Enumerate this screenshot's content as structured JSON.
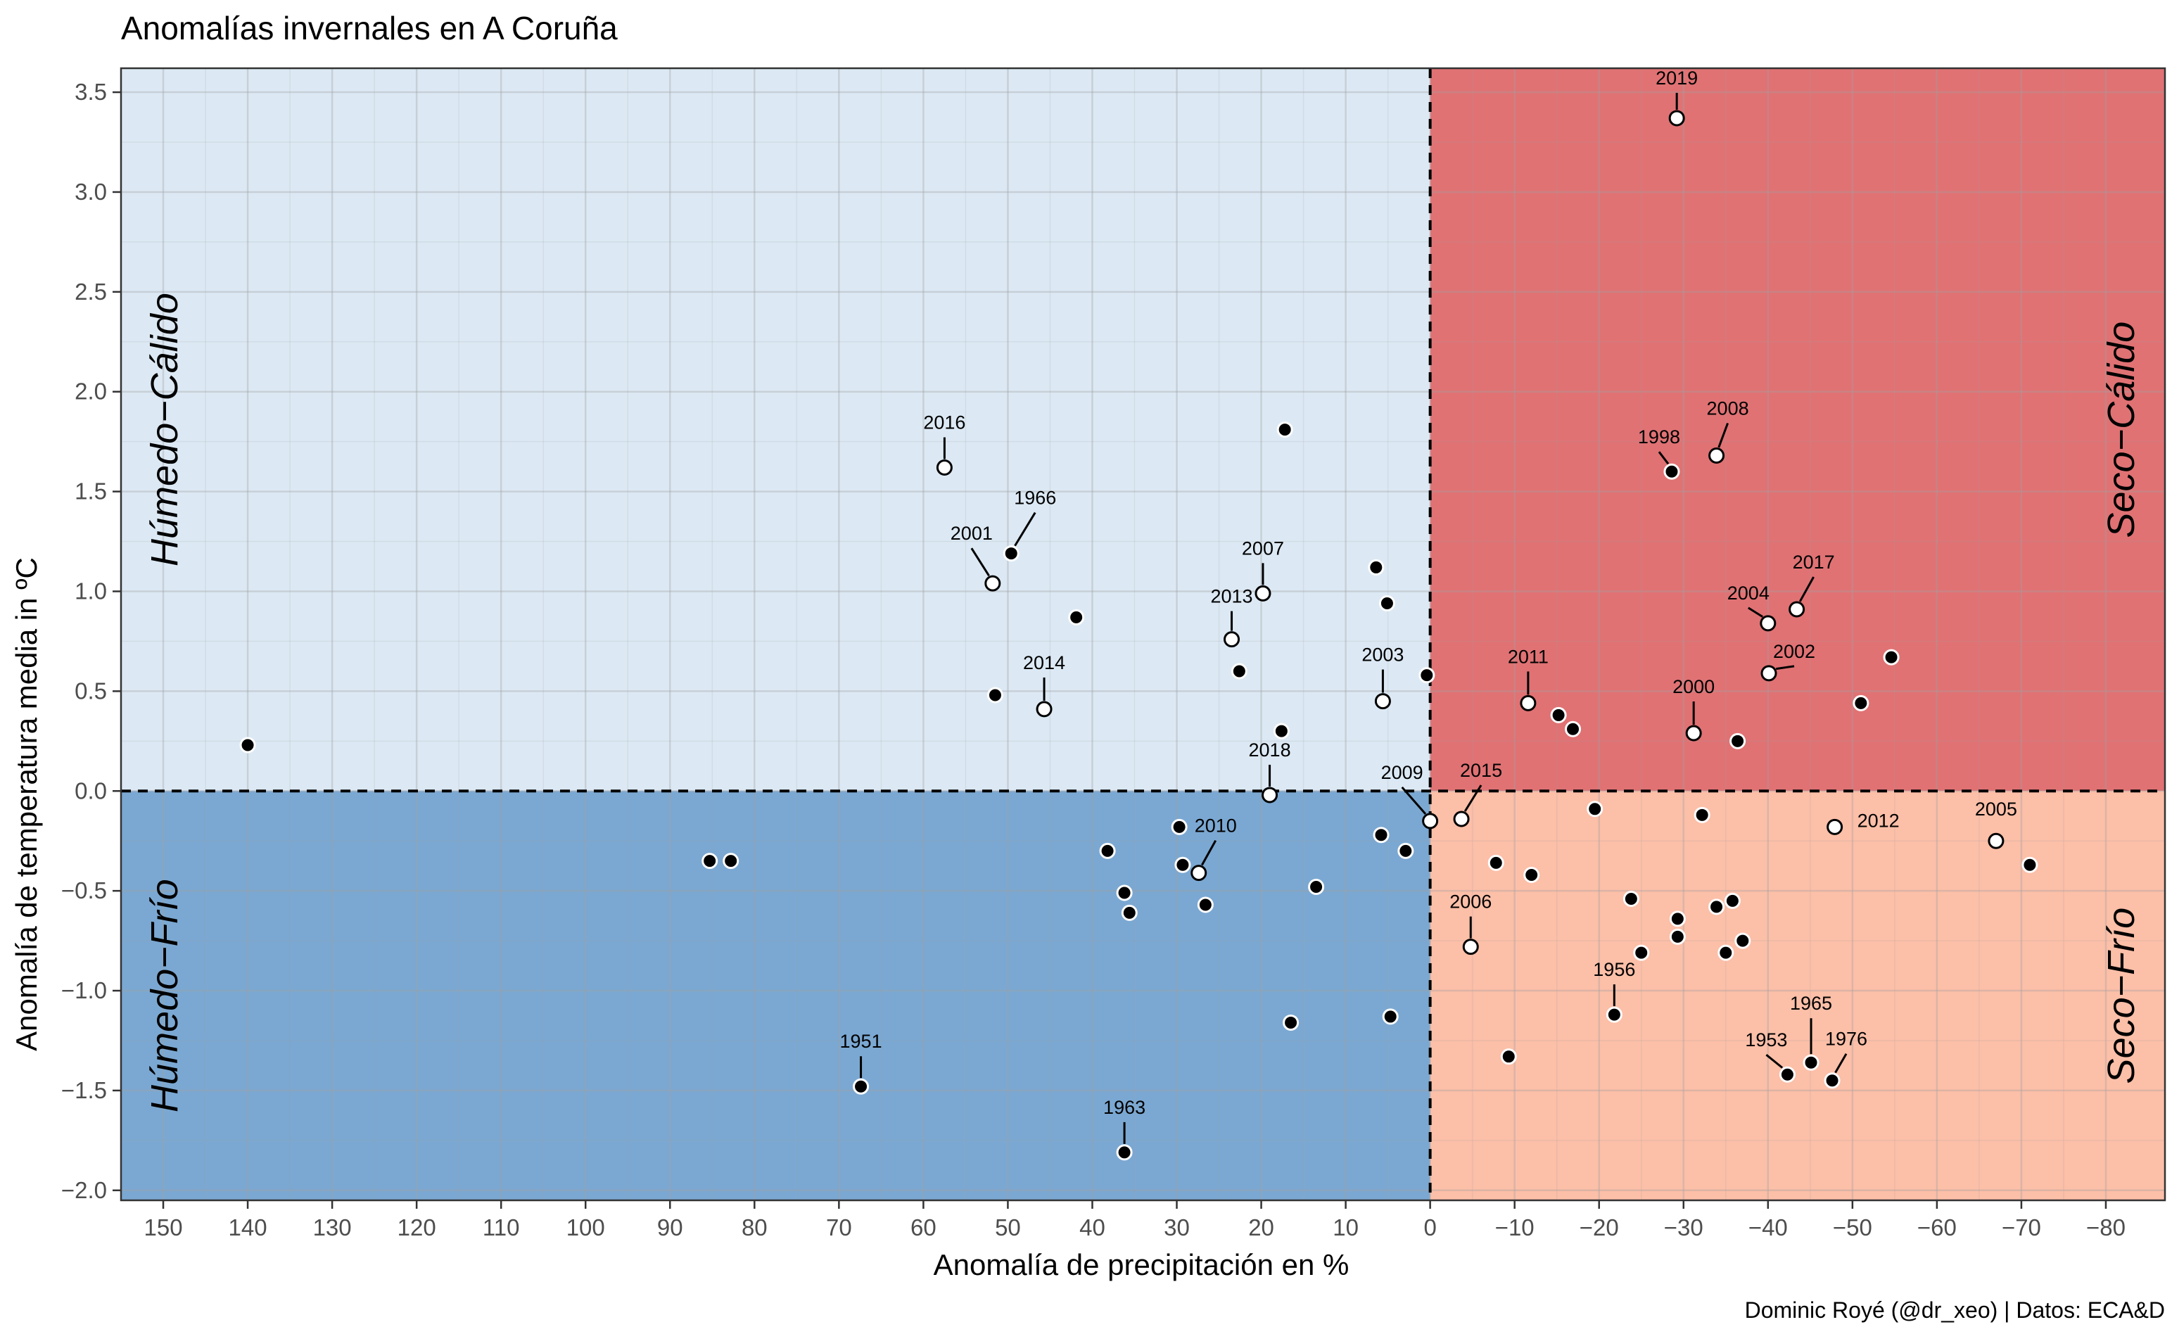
{
  "chart_data": {
    "type": "scatter",
    "title": "Anomalías invernales en A Coruña",
    "xlabel": "Anomalía de precipitación en %",
    "ylabel": "Anomalía de temperatura media in ºC",
    "caption": "Dominic Royé (@dr_xeo) | Datos: ECA&D",
    "x_reversed": true,
    "xlim": [
      155,
      -87
    ],
    "ylim": [
      -2.05,
      3.62
    ],
    "x_ticks": [
      150,
      140,
      130,
      120,
      110,
      100,
      90,
      80,
      70,
      60,
      50,
      40,
      30,
      20,
      10,
      0,
      -10,
      -20,
      -30,
      -40,
      -50,
      -60,
      -70,
      -80
    ],
    "x_tick_labels": [
      "150",
      "140",
      "130",
      "120",
      "110",
      "100",
      "90",
      "80",
      "70",
      "60",
      "50",
      "40",
      "30",
      "20",
      "10",
      "0",
      "−10",
      "−20",
      "−30",
      "−40",
      "−50",
      "−60",
      "−70",
      "−80"
    ],
    "y_ticks": [
      -2.0,
      -1.5,
      -1.0,
      -0.5,
      0.0,
      0.5,
      1.0,
      1.5,
      2.0,
      2.5,
      3.0,
      3.5
    ],
    "y_tick_labels": [
      "−2.0",
      "−1.5",
      "−1.0",
      "−0.5",
      "0.0",
      "0.5",
      "1.0",
      "1.5",
      "2.0",
      "2.5",
      "3.0",
      "3.5"
    ],
    "grid": true,
    "quadrants": [
      {
        "name": "Húmedo−Cálido",
        "color": "#dce9f4",
        "x": [
          155,
          0
        ],
        "y": [
          0,
          3.62
        ]
      },
      {
        "name": "Seco−Cálido",
        "color": "#e07274",
        "x": [
          0,
          -87
        ],
        "y": [
          0,
          3.62
        ]
      },
      {
        "name": "Húmedo−Frío",
        "color": "#7ba8d2",
        "x": [
          155,
          0
        ],
        "y": [
          -2.05,
          0
        ]
      },
      {
        "name": "Seco−Frío",
        "color": "#fcbfa8",
        "x": [
          0,
          -87
        ],
        "y": [
          -2.05,
          0
        ]
      }
    ],
    "points": [
      {
        "x": 140.0,
        "y": 0.23,
        "label": "",
        "highlight": false
      },
      {
        "x": 85.3,
        "y": -0.35,
        "label": "",
        "highlight": false
      },
      {
        "x": 82.8,
        "y": -0.35,
        "label": "",
        "highlight": false
      },
      {
        "x": 67.4,
        "y": -1.48,
        "label": "1951",
        "highlight": false
      },
      {
        "x": 57.5,
        "y": 1.62,
        "label": "2016",
        "highlight": true
      },
      {
        "x": 51.8,
        "y": 1.04,
        "label": "2001",
        "highlight": true
      },
      {
        "x": 51.5,
        "y": 0.48,
        "label": "",
        "highlight": false
      },
      {
        "x": 49.6,
        "y": 1.19,
        "label": "1966",
        "highlight": false
      },
      {
        "x": 45.7,
        "y": 0.41,
        "label": "2014",
        "highlight": true
      },
      {
        "x": 41.9,
        "y": 0.87,
        "label": "",
        "highlight": false
      },
      {
        "x": 38.2,
        "y": -0.3,
        "label": "",
        "highlight": false
      },
      {
        "x": 36.2,
        "y": -0.51,
        "label": "",
        "highlight": false
      },
      {
        "x": 36.2,
        "y": -1.81,
        "label": "1963",
        "highlight": false
      },
      {
        "x": 35.6,
        "y": -0.61,
        "label": "",
        "highlight": false
      },
      {
        "x": 29.7,
        "y": -0.18,
        "label": "",
        "highlight": false
      },
      {
        "x": 29.3,
        "y": -0.37,
        "label": "",
        "highlight": false
      },
      {
        "x": 27.4,
        "y": -0.41,
        "label": "2010",
        "highlight": true
      },
      {
        "x": 26.6,
        "y": -0.57,
        "label": "",
        "highlight": false
      },
      {
        "x": 23.5,
        "y": 0.76,
        "label": "2013",
        "highlight": true
      },
      {
        "x": 22.6,
        "y": 0.6,
        "label": "",
        "highlight": false
      },
      {
        "x": 19.8,
        "y": 0.99,
        "label": "2007",
        "highlight": true
      },
      {
        "x": 19.0,
        "y": -0.02,
        "label": "2018",
        "highlight": true
      },
      {
        "x": 17.6,
        "y": 0.3,
        "label": "",
        "highlight": false
      },
      {
        "x": 17.2,
        "y": 1.81,
        "label": "",
        "highlight": false
      },
      {
        "x": 16.5,
        "y": -1.16,
        "label": "",
        "highlight": false
      },
      {
        "x": 13.5,
        "y": -0.48,
        "label": "",
        "highlight": false
      },
      {
        "x": 6.4,
        "y": 1.12,
        "label": "",
        "highlight": false
      },
      {
        "x": 5.8,
        "y": -0.22,
        "label": "",
        "highlight": false
      },
      {
        "x": 5.6,
        "y": 0.45,
        "label": "2003",
        "highlight": true
      },
      {
        "x": 5.1,
        "y": 0.94,
        "label": "",
        "highlight": false
      },
      {
        "x": 4.7,
        "y": -1.13,
        "label": "",
        "highlight": false
      },
      {
        "x": 2.9,
        "y": -0.3,
        "label": "",
        "highlight": false
      },
      {
        "x": 0.4,
        "y": 0.58,
        "label": "",
        "highlight": false
      },
      {
        "x": 0.0,
        "y": -0.15,
        "label": "2009",
        "highlight": true
      },
      {
        "x": -3.7,
        "y": -0.14,
        "label": "2015",
        "highlight": true
      },
      {
        "x": -4.8,
        "y": -0.78,
        "label": "2006",
        "highlight": true
      },
      {
        "x": -7.8,
        "y": -0.36,
        "label": "",
        "highlight": false
      },
      {
        "x": -9.3,
        "y": -1.33,
        "label": "",
        "highlight": false
      },
      {
        "x": -11.6,
        "y": 0.44,
        "label": "2011",
        "highlight": true
      },
      {
        "x": -12.0,
        "y": -0.42,
        "label": "",
        "highlight": false
      },
      {
        "x": -15.2,
        "y": 0.38,
        "label": "",
        "highlight": false
      },
      {
        "x": -16.9,
        "y": 0.31,
        "label": "",
        "highlight": false
      },
      {
        "x": -19.5,
        "y": -0.09,
        "label": "",
        "highlight": false
      },
      {
        "x": -21.8,
        "y": -1.12,
        "label": "1956",
        "highlight": false
      },
      {
        "x": -23.8,
        "y": -0.54,
        "label": "",
        "highlight": false
      },
      {
        "x": -25.0,
        "y": -0.81,
        "label": "",
        "highlight": false
      },
      {
        "x": -28.6,
        "y": 1.6,
        "label": "1998",
        "highlight": false
      },
      {
        "x": -29.2,
        "y": 3.37,
        "label": "2019",
        "highlight": true
      },
      {
        "x": -29.3,
        "y": -0.64,
        "label": "",
        "highlight": false
      },
      {
        "x": -29.3,
        "y": -0.73,
        "label": "",
        "highlight": false
      },
      {
        "x": -31.2,
        "y": 0.29,
        "label": "2000",
        "highlight": true
      },
      {
        "x": -32.2,
        "y": -0.12,
        "label": "",
        "highlight": false
      },
      {
        "x": -33.9,
        "y": 1.68,
        "label": "2008",
        "highlight": true
      },
      {
        "x": -33.9,
        "y": -0.58,
        "label": "",
        "highlight": false
      },
      {
        "x": -35.0,
        "y": -0.81,
        "label": "",
        "highlight": false
      },
      {
        "x": -35.8,
        "y": -0.55,
        "label": "",
        "highlight": false
      },
      {
        "x": -36.4,
        "y": 0.25,
        "label": "",
        "highlight": false
      },
      {
        "x": -37.0,
        "y": -0.75,
        "label": "",
        "highlight": false
      },
      {
        "x": -40.0,
        "y": 0.84,
        "label": "2004",
        "highlight": true
      },
      {
        "x": -40.1,
        "y": 0.59,
        "label": "2002",
        "highlight": true
      },
      {
        "x": -42.3,
        "y": -1.42,
        "label": "1953",
        "highlight": false
      },
      {
        "x": -43.4,
        "y": 0.91,
        "label": "2017",
        "highlight": true
      },
      {
        "x": -45.1,
        "y": -1.36,
        "label": "1965",
        "highlight": false
      },
      {
        "x": -47.6,
        "y": -1.45,
        "label": "1976",
        "highlight": false
      },
      {
        "x": -47.9,
        "y": -0.18,
        "label": "2012",
        "highlight": true
      },
      {
        "x": -51.0,
        "y": 0.44,
        "label": "",
        "highlight": false
      },
      {
        "x": -54.6,
        "y": 0.67,
        "label": "",
        "highlight": false
      },
      {
        "x": -67.0,
        "y": -0.25,
        "label": "2005",
        "highlight": true
      },
      {
        "x": -71.0,
        "y": -0.37,
        "label": "",
        "highlight": false
      }
    ]
  }
}
